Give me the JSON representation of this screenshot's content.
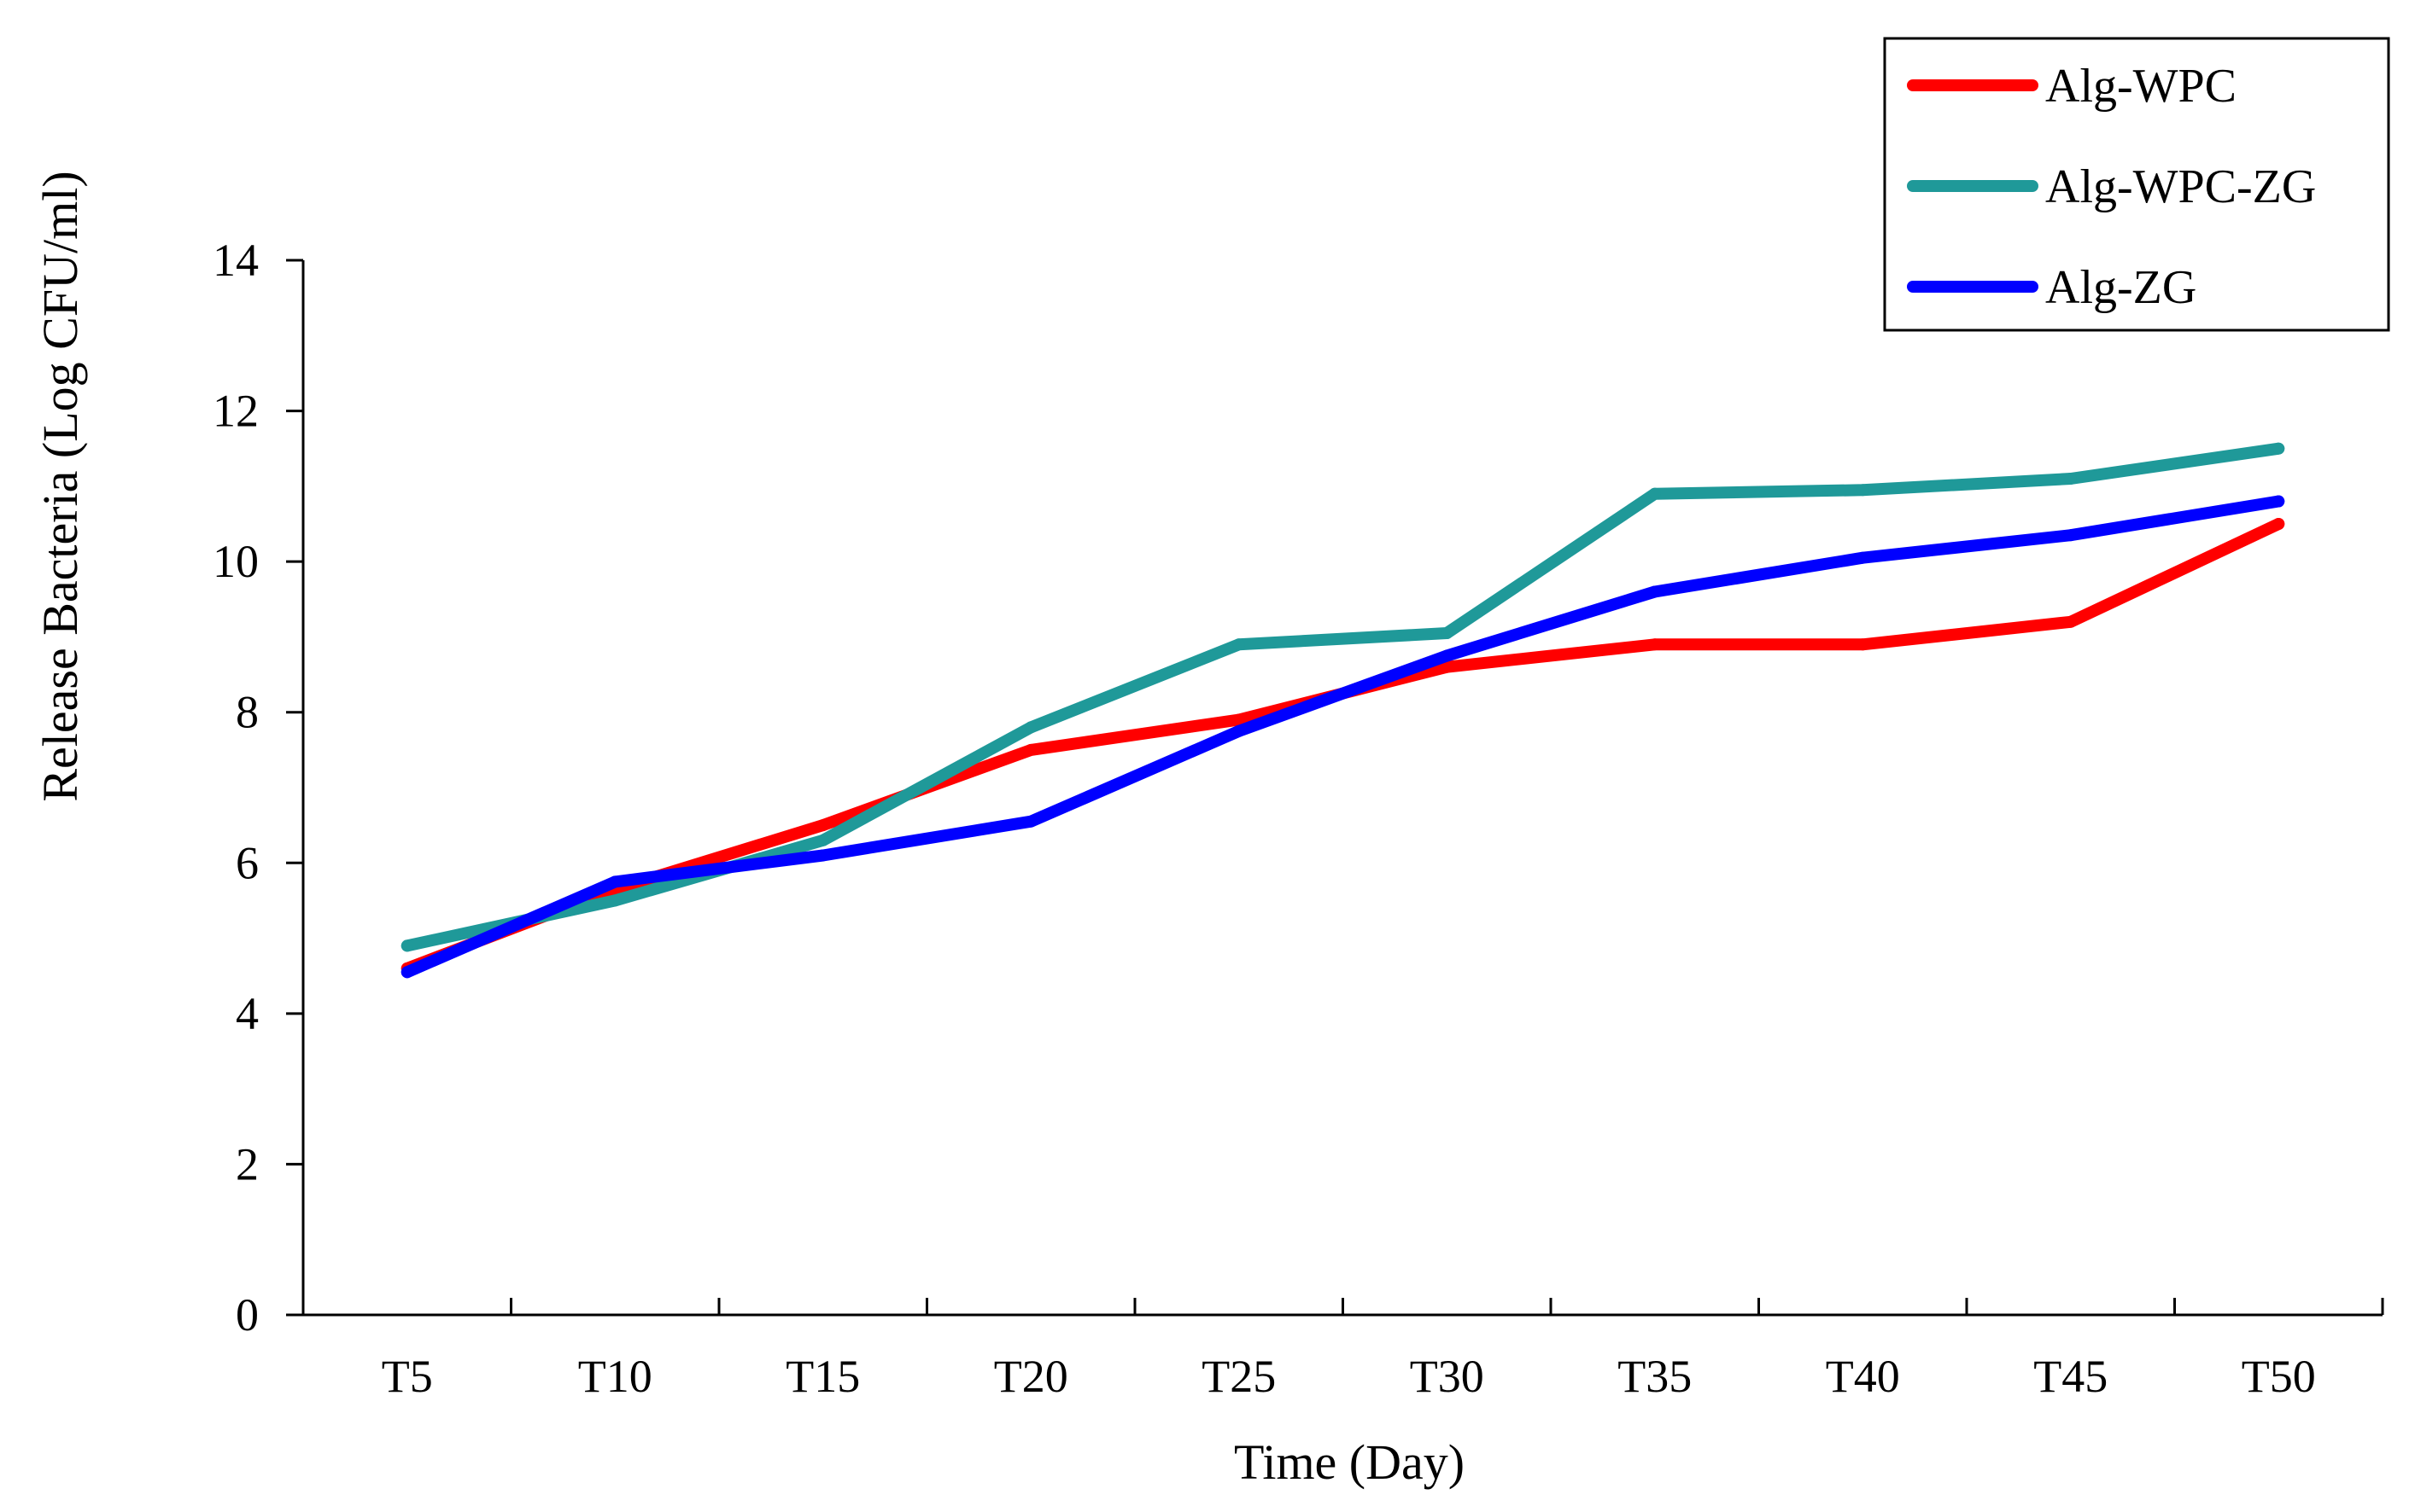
{
  "chart_data": {
    "type": "line",
    "title": "",
    "xlabel": "Time (Day)",
    "ylabel": "Release Bacteria (Log CFU/ml)",
    "categories": [
      "T5",
      "T10",
      "T15",
      "T20",
      "T25",
      "T30",
      "T35",
      "T40",
      "T45",
      "T50"
    ],
    "ylim": [
      0,
      14
    ],
    "yticks": [
      0,
      2,
      4,
      6,
      8,
      10,
      12,
      14
    ],
    "legend_position": "top-right",
    "series": [
      {
        "name": "Alg-WPC",
        "color": "#ff0000",
        "values": [
          4.6,
          5.65,
          6.5,
          7.5,
          7.9,
          8.6,
          8.9,
          8.9,
          9.2,
          10.5
        ]
      },
      {
        "name": "Alg-WPC-ZG",
        "color": "#1f9999",
        "values": [
          4.9,
          5.5,
          6.3,
          7.8,
          8.9,
          9.05,
          10.9,
          10.95,
          11.1,
          11.5
        ]
      },
      {
        "name": "Alg-ZG",
        "color": "#0000ff",
        "values": [
          4.55,
          5.75,
          6.1,
          6.55,
          7.75,
          8.75,
          9.6,
          10.05,
          10.35,
          10.8
        ]
      }
    ]
  }
}
